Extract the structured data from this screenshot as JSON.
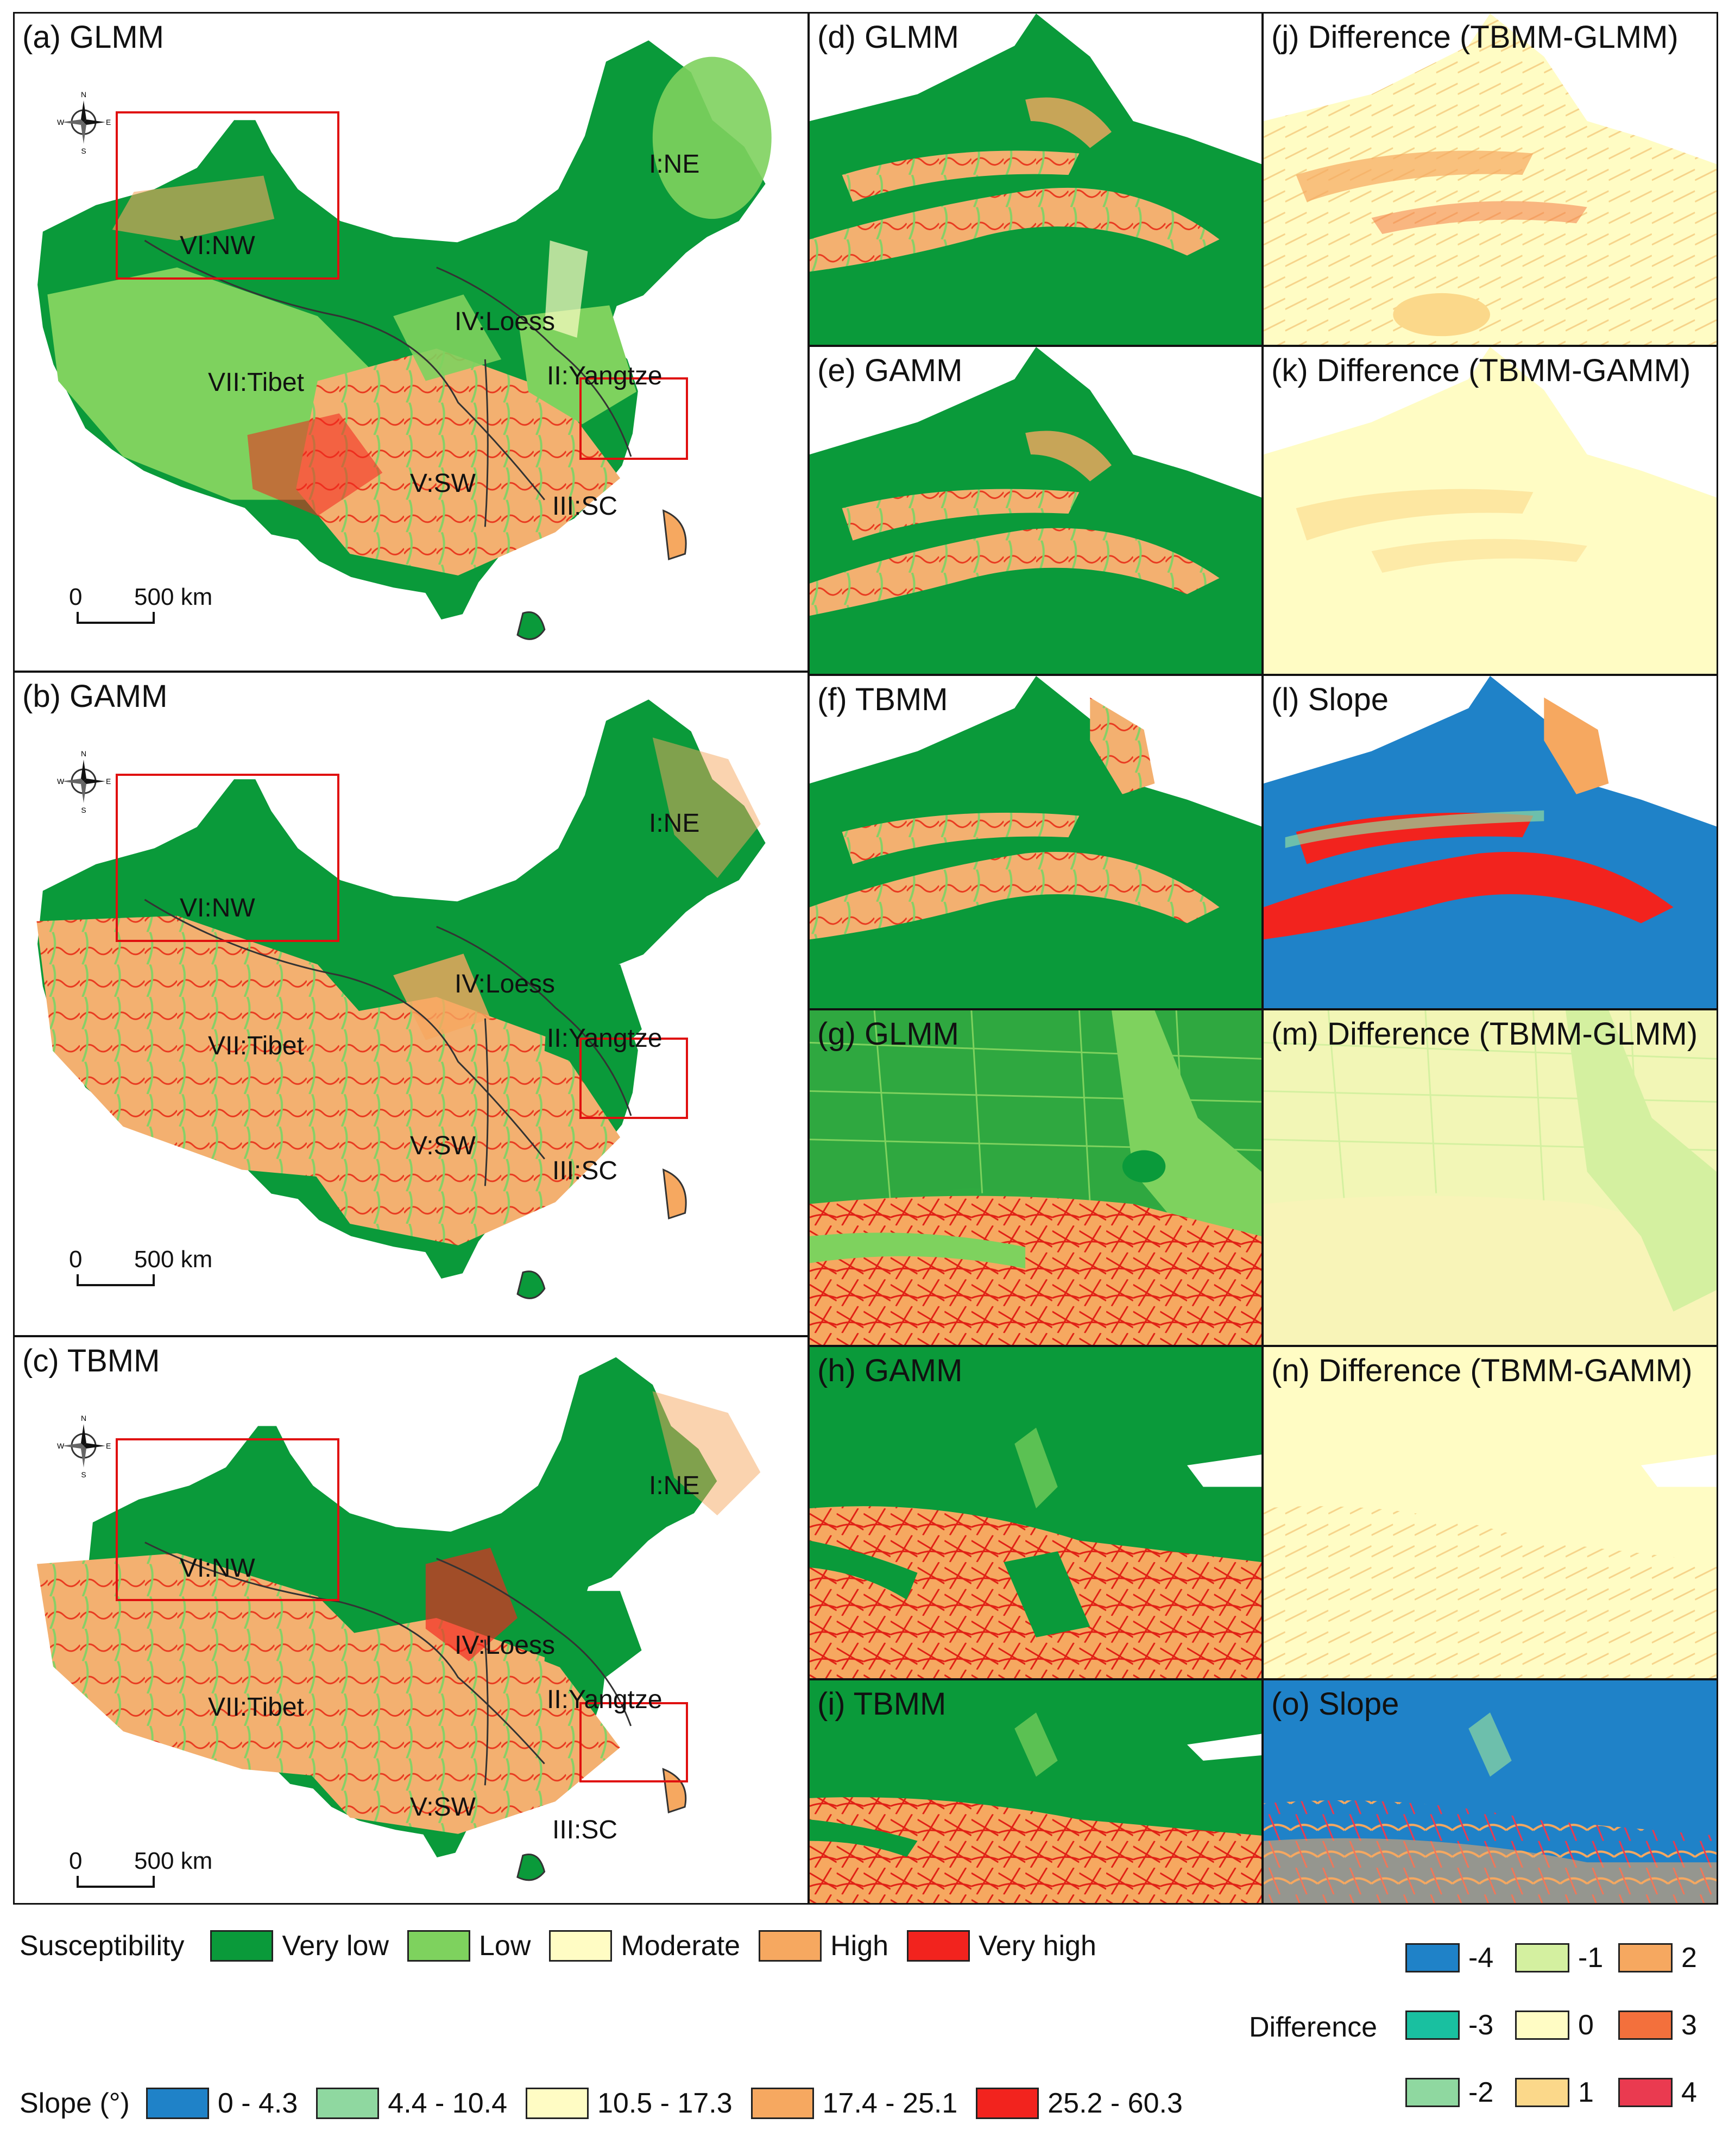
{
  "panels": {
    "a": {
      "label": "(a) GLMM"
    },
    "b": {
      "label": "(b) GAMM"
    },
    "c": {
      "label": "(c) TBMM"
    },
    "d": {
      "label": "(d) GLMM"
    },
    "e": {
      "label": "(e) GAMM"
    },
    "f": {
      "label": "(f) TBMM"
    },
    "g": {
      "label": "(g) GLMM"
    },
    "h": {
      "label": "(h) GAMM"
    },
    "i": {
      "label": "(i) TBMM"
    },
    "j": {
      "label": "(j) Difference (TBMM-GLMM)"
    },
    "k": {
      "label": "(k) Difference (TBMM-GAMM)"
    },
    "l": {
      "label": "(l) Slope"
    },
    "m": {
      "label": "(m) Difference (TBMM-GLMM)"
    },
    "n": {
      "label": "(n) Difference (TBMM-GAMM)"
    },
    "o": {
      "label": "(o) Slope"
    }
  },
  "regions": {
    "ne": "I:NE",
    "yangtze": "II:Yangtze",
    "sc": "III:SC",
    "loess": "IV:Loess",
    "sw": "V:SW",
    "nw": "VI:NW",
    "tibet": "VII:Tibet"
  },
  "scalebar": {
    "zero": "0",
    "dist": "500",
    "unit": "km"
  },
  "compass": {
    "n": "N",
    "s": "S",
    "e": "E",
    "w": "W"
  },
  "colors": {
    "very_low": "#0a9a3a",
    "low": "#7ed25e",
    "moderate": "#fffcc4",
    "high": "#f6a860",
    "very_high": "#f2231e",
    "inset_box": "#e01010"
  },
  "legend": {
    "susceptibility": {
      "title": "Susceptibility",
      "items": [
        {
          "label": "Very low",
          "color": "#0a9a3a"
        },
        {
          "label": "Low",
          "color": "#7ed25e"
        },
        {
          "label": "Moderate",
          "color": "#fffcc4"
        },
        {
          "label": "High",
          "color": "#f6a860"
        },
        {
          "label": "Very high",
          "color": "#f2231e"
        }
      ]
    },
    "slope": {
      "title": "Slope (°)",
      "items": [
        {
          "label": "0 - 4.3",
          "color": "#1f82c8"
        },
        {
          "label": "4.4 - 10.4",
          "color": "#8fd8a0"
        },
        {
          "label": "10.5 - 17.3",
          "color": "#fffcc4"
        },
        {
          "label": "17.4 - 25.1",
          "color": "#f6a860"
        },
        {
          "label": "25.2 - 60.3",
          "color": "#f2231e"
        }
      ]
    },
    "difference": {
      "title": "Difference",
      "items": [
        {
          "label": "-4",
          "color": "#1f82c8"
        },
        {
          "label": "-3",
          "color": "#19c0a0"
        },
        {
          "label": "-2",
          "color": "#8fd8a0"
        },
        {
          "label": "-1",
          "color": "#d4f0a0"
        },
        {
          "label": "0",
          "color": "#fffcc4"
        },
        {
          "label": "1",
          "color": "#fbd88a"
        },
        {
          "label": "2",
          "color": "#f6a860"
        },
        {
          "label": "3",
          "color": "#f3703c"
        },
        {
          "label": "4",
          "color": "#ea3a50"
        }
      ]
    }
  }
}
